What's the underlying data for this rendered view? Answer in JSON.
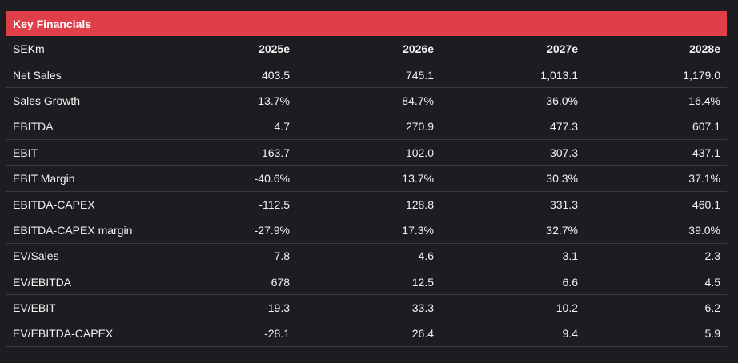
{
  "title": "Key Financials",
  "table": {
    "header": [
      "SEKm",
      "2025e",
      "2026e",
      "2027e",
      "2028e"
    ],
    "rows": [
      {
        "label": "Net Sales",
        "values": [
          "403.5",
          "745.1",
          "1,013.1",
          "1,179.0"
        ]
      },
      {
        "label": "Sales Growth",
        "values": [
          "13.7%",
          "84.7%",
          "36.0%",
          "16.4%"
        ]
      },
      {
        "label": "EBITDA",
        "values": [
          "4.7",
          "270.9",
          "477.3",
          "607.1"
        ]
      },
      {
        "label": "EBIT",
        "values": [
          "-163.7",
          "102.0",
          "307.3",
          "437.1"
        ]
      },
      {
        "label": "EBIT Margin",
        "values": [
          "-40.6%",
          "13.7%",
          "30.3%",
          "37.1%"
        ]
      },
      {
        "label": "EBITDA-CAPEX",
        "values": [
          "-112.5",
          "128.8",
          "331.3",
          "460.1"
        ]
      },
      {
        "label": "EBITDA-CAPEX margin",
        "values": [
          "-27.9%",
          "17.3%",
          "32.7%",
          "39.0%"
        ]
      },
      {
        "label": "EV/Sales",
        "values": [
          "7.8",
          "4.6",
          "3.1",
          "2.3"
        ]
      },
      {
        "label": "EV/EBITDA",
        "values": [
          "678",
          "12.5",
          "6.6",
          "4.5"
        ]
      },
      {
        "label": "EV/EBIT",
        "values": [
          "-19.3",
          "33.3",
          "10.2",
          "6.2"
        ]
      },
      {
        "label": "EV/EBITDA-CAPEX",
        "values": [
          "-28.1",
          "26.4",
          "9.4",
          "5.9"
        ]
      }
    ]
  },
  "colors": {
    "title_bar": "#de3f48",
    "background": "#1d1d21",
    "row_divider": "#3a3a40",
    "text": "#f2f2f2"
  }
}
